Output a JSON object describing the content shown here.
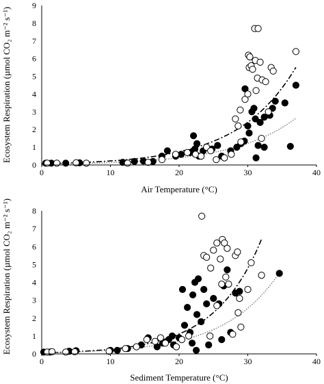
{
  "chart_data": [
    {
      "type": "scatter",
      "xlabel": "Air Temperature (°C)",
      "ylabel": "Ecosystem Respiration (µmol CO₂ m⁻² s⁻¹)",
      "xlim": [
        0,
        40
      ],
      "ylim": [
        0,
        9
      ],
      "xticks": [
        "0",
        "10",
        "20",
        "30",
        "40"
      ],
      "yticks": [
        "0",
        "1",
        "2",
        "3",
        "4",
        "5",
        "6",
        "7",
        "8",
        "9"
      ],
      "grid": false,
      "series": [
        {
          "marker": "filled-circle",
          "points": [
            [
              0.6,
              0.1
            ],
            [
              1.4,
              0.1
            ],
            [
              3.5,
              0.1
            ],
            [
              5.5,
              0.12
            ],
            [
              11.8,
              0.15
            ],
            [
              13.5,
              0.2
            ],
            [
              14.8,
              0.22
            ],
            [
              16.2,
              0.2
            ],
            [
              17.5,
              0.5
            ],
            [
              18.3,
              0.8
            ],
            [
              19.5,
              0.5
            ],
            [
              20.3,
              0.6
            ],
            [
              21.6,
              0.7
            ],
            [
              22.1,
              1.65
            ],
            [
              22.3,
              0.9
            ],
            [
              22.6,
              1.2
            ],
            [
              22.9,
              0.5
            ],
            [
              23.5,
              0.8
            ],
            [
              24.8,
              0.9
            ],
            [
              25.6,
              1.1
            ],
            [
              26.2,
              0.5
            ],
            [
              27.5,
              0.8
            ],
            [
              28.4,
              1.0
            ],
            [
              29.0,
              1.2
            ],
            [
              29.5,
              1.35
            ],
            [
              30.0,
              2.2
            ],
            [
              30.2,
              1.8
            ],
            [
              30.6,
              3.0
            ],
            [
              30.9,
              3.2
            ],
            [
              31.1,
              2.6
            ],
            [
              31.5,
              1.1
            ],
            [
              31.8,
              2.4
            ],
            [
              32.4,
              2.7
            ],
            [
              33.2,
              2.8
            ],
            [
              33.6,
              3.2
            ],
            [
              34.0,
              3.6
            ],
            [
              35.4,
              3.5
            ],
            [
              36.2,
              1.05
            ],
            [
              37.0,
              4.5
            ],
            [
              29.6,
              4.3
            ],
            [
              32.4,
              1.0
            ],
            [
              31.2,
              0.4
            ]
          ]
        },
        {
          "marker": "open-circle",
          "points": [
            [
              0.8,
              0.1
            ],
            [
              2.2,
              0.1
            ],
            [
              5.0,
              0.12
            ],
            [
              6.5,
              0.1
            ],
            [
              12.5,
              0.1
            ],
            [
              15.5,
              0.15
            ],
            [
              17.5,
              0.3
            ],
            [
              19.5,
              0.6
            ],
            [
              21.2,
              0.7
            ],
            [
              22.4,
              0.6
            ],
            [
              23.2,
              0.5
            ],
            [
              24.0,
              1.0
            ],
            [
              24.6,
              0.8
            ],
            [
              25.4,
              0.3
            ],
            [
              26.6,
              0.4
            ],
            [
              27.6,
              0.6
            ],
            [
              28.2,
              2.6
            ],
            [
              28.6,
              2.2
            ],
            [
              28.9,
              3.1
            ],
            [
              29.6,
              3.7
            ],
            [
              30.1,
              6.2
            ],
            [
              30.2,
              5.5
            ],
            [
              30.3,
              6.1
            ],
            [
              30.5,
              5.6
            ],
            [
              30.7,
              5.4
            ],
            [
              31.0,
              7.7
            ],
            [
              31.1,
              5.9
            ],
            [
              31.5,
              7.7
            ],
            [
              31.8,
              5.8
            ],
            [
              31.4,
              4.9
            ],
            [
              32.1,
              4.8
            ],
            [
              32.6,
              4.7
            ],
            [
              33.0,
              3.0
            ],
            [
              33.4,
              5.5
            ],
            [
              33.7,
              5.3
            ],
            [
              37.0,
              6.4
            ],
            [
              31.2,
              4.2
            ],
            [
              30.0,
              4.0
            ],
            [
              32.0,
              1.5
            ],
            [
              29.0,
              1.3
            ]
          ]
        }
      ]
    },
    {
      "type": "scatter",
      "xlabel": "Sediment Temperature (°C)",
      "ylabel": "Ecosystem Respiration (µmol CO₂ m⁻² s⁻¹)",
      "xlim": [
        0,
        40
      ],
      "ylim": [
        0,
        8
      ],
      "xticks": [
        "0",
        "10",
        "20",
        "30",
        "40"
      ],
      "yticks": [
        "0",
        "1",
        "2",
        "3",
        "4",
        "5",
        "6",
        "7",
        "8"
      ],
      "grid": false,
      "series": [
        {
          "marker": "filled-circle",
          "points": [
            [
              0.3,
              0.1
            ],
            [
              1.2,
              0.1
            ],
            [
              4.0,
              0.15
            ],
            [
              5.0,
              0.18
            ],
            [
              10.0,
              0.2
            ],
            [
              11.0,
              0.2
            ],
            [
              12.5,
              0.3
            ],
            [
              14.5,
              0.5
            ],
            [
              15.5,
              0.9
            ],
            [
              16.8,
              0.4
            ],
            [
              17.6,
              0.6
            ],
            [
              18.5,
              0.8
            ],
            [
              19.2,
              0.5
            ],
            [
              20.0,
              0.9
            ],
            [
              20.5,
              3.6
            ],
            [
              20.8,
              1.6
            ],
            [
              21.2,
              2.6
            ],
            [
              21.6,
              1.2
            ],
            [
              21.9,
              0.6
            ],
            [
              22.0,
              3.3
            ],
            [
              22.3,
              4.0
            ],
            [
              22.6,
              2.2
            ],
            [
              22.8,
              4.2
            ],
            [
              23.2,
              1.8
            ],
            [
              23.6,
              3.6
            ],
            [
              24.0,
              2.8
            ],
            [
              24.3,
              0.5
            ],
            [
              25.0,
              3.1
            ],
            [
              25.8,
              2.8
            ],
            [
              26.2,
              0.8
            ],
            [
              26.5,
              3.8
            ],
            [
              27.0,
              4.7
            ],
            [
              27.5,
              1.2
            ],
            [
              28.2,
              3.4
            ],
            [
              28.8,
              3.5
            ],
            [
              34.6,
              4.5
            ],
            [
              19.0,
              1.0
            ],
            [
              22.5,
              0.2
            ]
          ]
        },
        {
          "marker": "open-circle",
          "points": [
            [
              0.8,
              0.1
            ],
            [
              1.5,
              0.12
            ],
            [
              3.5,
              0.1
            ],
            [
              4.8,
              0.12
            ],
            [
              9.8,
              0.15
            ],
            [
              12.2,
              0.3
            ],
            [
              13.8,
              0.4
            ],
            [
              15.3,
              0.8
            ],
            [
              16.5,
              0.7
            ],
            [
              17.3,
              0.9
            ],
            [
              18.0,
              0.6
            ],
            [
              19.6,
              0.4
            ],
            [
              20.4,
              0.8
            ],
            [
              21.4,
              1.0
            ],
            [
              23.3,
              7.7
            ],
            [
              23.6,
              5.5
            ],
            [
              24.0,
              5.4
            ],
            [
              24.6,
              4.8
            ],
            [
              25.0,
              5.8
            ],
            [
              25.5,
              6.2
            ],
            [
              26.0,
              5.3
            ],
            [
              26.3,
              6.4
            ],
            [
              26.6,
              6.2
            ],
            [
              27.0,
              5.9
            ],
            [
              26.2,
              3.9
            ],
            [
              26.8,
              4.3
            ],
            [
              28.2,
              5.5
            ],
            [
              28.5,
              5.7
            ],
            [
              28.6,
              2.3
            ],
            [
              29.0,
              1.5
            ],
            [
              30.0,
              3.6
            ],
            [
              30.5,
              5.1
            ],
            [
              32.0,
              4.4
            ],
            [
              27.2,
              3.9
            ],
            [
              28.8,
              3.1
            ],
            [
              25.5,
              2.7
            ],
            [
              27.8,
              1.1
            ],
            [
              24.5,
              1.0
            ]
          ]
        }
      ]
    }
  ]
}
